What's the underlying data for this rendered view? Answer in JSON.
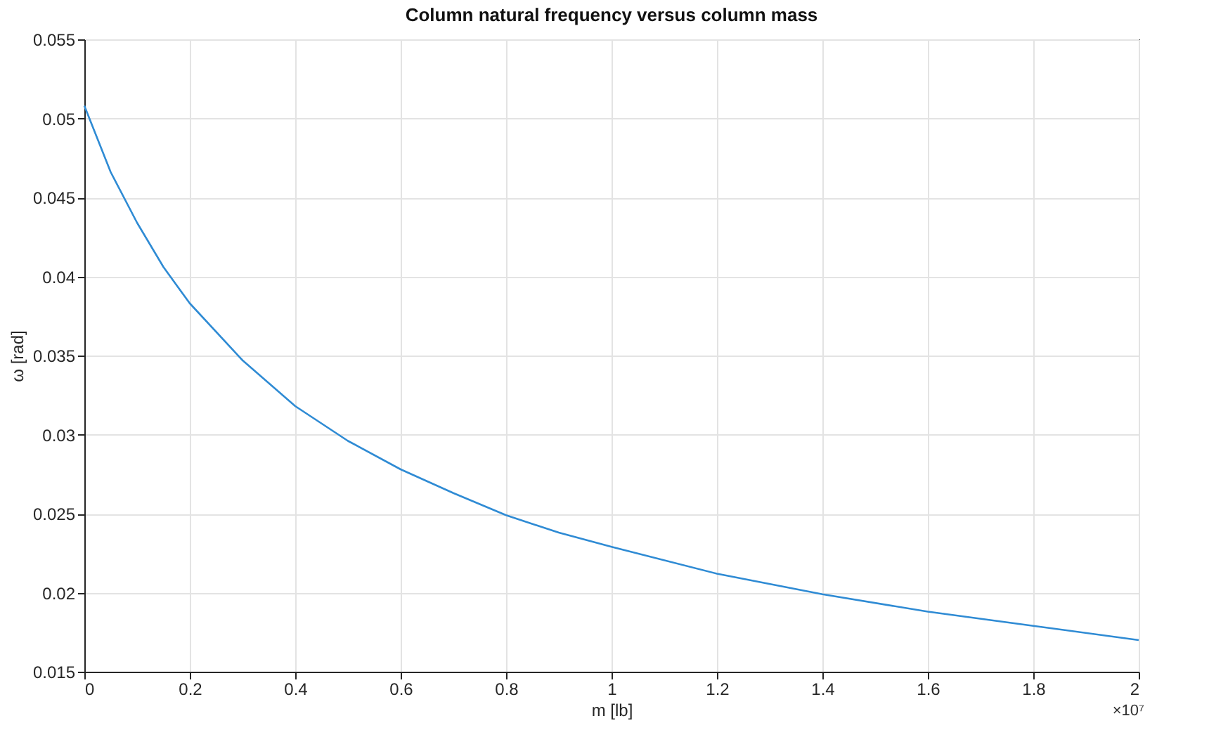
{
  "chart_data": {
    "type": "line",
    "title": "Column natural frequency versus column mass",
    "xlabel": "m [lb]",
    "ylabel": "ω [rad]",
    "x": [
      0,
      0.05,
      0.1,
      0.15,
      0.2,
      0.3,
      0.4,
      0.5,
      0.6,
      0.7,
      0.8,
      0.9,
      1.0,
      1.2,
      1.4,
      1.6,
      1.8,
      2.0
    ],
    "series": [
      {
        "color": "#2f8bd4",
        "values": [
          0.0508,
          0.0466,
          0.0434,
          0.0406,
          0.0383,
          0.0347,
          0.0318,
          0.0296,
          0.0278,
          0.0263,
          0.0249,
          0.0238,
          0.0229,
          0.0212,
          0.0199,
          0.0188,
          0.0179,
          0.017
        ]
      }
    ],
    "xlim": [
      0,
      2
    ],
    "xticks": [
      0,
      0.2,
      0.4,
      0.6,
      0.8,
      1,
      1.2,
      1.4,
      1.6,
      1.8,
      2
    ],
    "ylim": [
      0.015,
      0.055
    ],
    "yticks": [
      0.015,
      0.02,
      0.025,
      0.03,
      0.035,
      0.04,
      0.045,
      0.05,
      0.055
    ],
    "grid": true,
    "marker": "none",
    "line_style": "solid",
    "annotations": [
      "×10⁷"
    ]
  }
}
